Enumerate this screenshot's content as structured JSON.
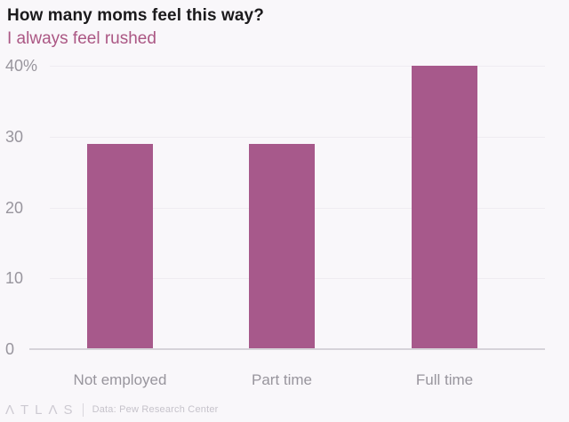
{
  "page": {
    "background": "#f9f7fa"
  },
  "header": {
    "title": "How many moms feel this way?",
    "title_color": "#1b1a1c",
    "subtitle": "I always feel rushed",
    "subtitle_color": "#ab5784"
  },
  "chart_data": {
    "type": "bar",
    "title": "How many moms feel this way?",
    "subtitle": "I always feel rushed",
    "categories": [
      "Not employed",
      "Part time",
      "Full time"
    ],
    "values": [
      29,
      29,
      40
    ],
    "xlabel": "",
    "ylabel": "",
    "ylim": [
      0,
      40
    ],
    "y_ticks": [
      {
        "value": 40,
        "label": "40%"
      },
      {
        "value": 30,
        "label": "30"
      },
      {
        "value": 20,
        "label": "20"
      },
      {
        "value": 10,
        "label": "10"
      },
      {
        "value": 0,
        "label": "0"
      }
    ],
    "grid": "horizontal-faint",
    "legend": "none",
    "colors": {
      "bar": "#a7598b",
      "gridline": "#efecf1",
      "baseline": "#d6d3d9",
      "axis_label": "#98959d"
    }
  },
  "footer": {
    "brand": "ΛTLΛS",
    "source": "Data: Pew Research Center"
  }
}
